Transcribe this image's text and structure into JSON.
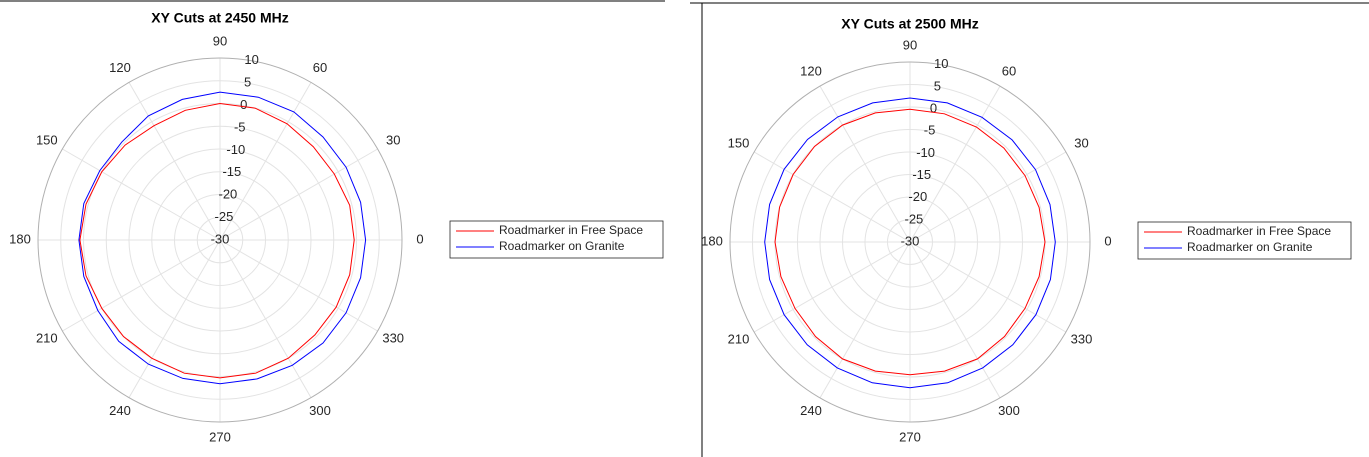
{
  "chart_data": [
    {
      "type": "polar",
      "title": "XY Cuts at 2450 MHz",
      "theta": [
        0,
        15,
        30,
        45,
        60,
        75,
        90,
        105,
        120,
        135,
        150,
        165,
        180,
        195,
        210,
        225,
        240,
        255,
        270,
        285,
        300,
        315,
        330,
        345
      ],
      "series": [
        {
          "name": "Roadmarker in Free Space",
          "color": "#ff0000",
          "values": [
            -0.5,
            -0.5,
            -1,
            -1,
            -0.5,
            0,
            0,
            -0.5,
            -1,
            -0.5,
            0,
            0.5,
            0.8,
            0.5,
            0,
            0,
            0,
            0.3,
            0.3,
            0.3,
            0,
            -0.5,
            -0.5,
            -0.5
          ]
        },
        {
          "name": "Roadmarker on Granite",
          "color": "#0000ff",
          "values": [
            2,
            2,
            2,
            2,
            2.5,
            2.5,
            2.5,
            2,
            1.5,
            0.5,
            0.5,
            1,
            1,
            1,
            1,
            1.5,
            1.5,
            1.5,
            1.6,
            1.6,
            1.8,
            2,
            2,
            2
          ]
        }
      ],
      "rlim": [
        -30,
        10
      ],
      "rticks": [
        -30,
        -25,
        -20,
        -15,
        -10,
        -5,
        0,
        5,
        10
      ],
      "thetaticks": [
        0,
        30,
        60,
        90,
        120,
        150,
        180,
        210,
        240,
        270,
        300,
        330
      ],
      "grid": true
    },
    {
      "type": "polar",
      "title": "XY Cuts at 2500 MHz",
      "theta": [
        0,
        15,
        30,
        45,
        60,
        75,
        90,
        105,
        120,
        135,
        150,
        165,
        180,
        195,
        210,
        225,
        240,
        255,
        270,
        285,
        300,
        315,
        330,
        345
      ],
      "series": [
        {
          "name": "Roadmarker in Free Space",
          "color": "#ff0000",
          "values": [
            0,
            -0.3,
            -0.5,
            -0.5,
            -0.5,
            -0.5,
            -0.5,
            -0.3,
            0,
            0,
            0,
            0,
            0,
            -0.3,
            -0.5,
            -0.3,
            0,
            -0.3,
            -0.5,
            -0.3,
            0,
            -0.3,
            -0.5,
            -0.3
          ]
        },
        {
          "name": "Roadmarker on Granite",
          "color": "#0000ff",
          "values": [
            2.3,
            2.2,
            2.2,
            2.1,
            2,
            2,
            2,
            2,
            2.1,
            2.2,
            2.3,
            2.3,
            2.3,
            2.3,
            2.3,
            2.3,
            2.3,
            2.4,
            2.4,
            2.4,
            2.3,
            2.3,
            2.3,
            2.3
          ]
        }
      ],
      "rlim": [
        -30,
        10
      ],
      "rticks": [
        -30,
        -25,
        -20,
        -15,
        -10,
        -5,
        0,
        5,
        10
      ],
      "thetaticks": [
        0,
        30,
        60,
        90,
        120,
        150,
        180,
        210,
        240,
        270,
        300,
        330
      ],
      "grid": true
    }
  ]
}
